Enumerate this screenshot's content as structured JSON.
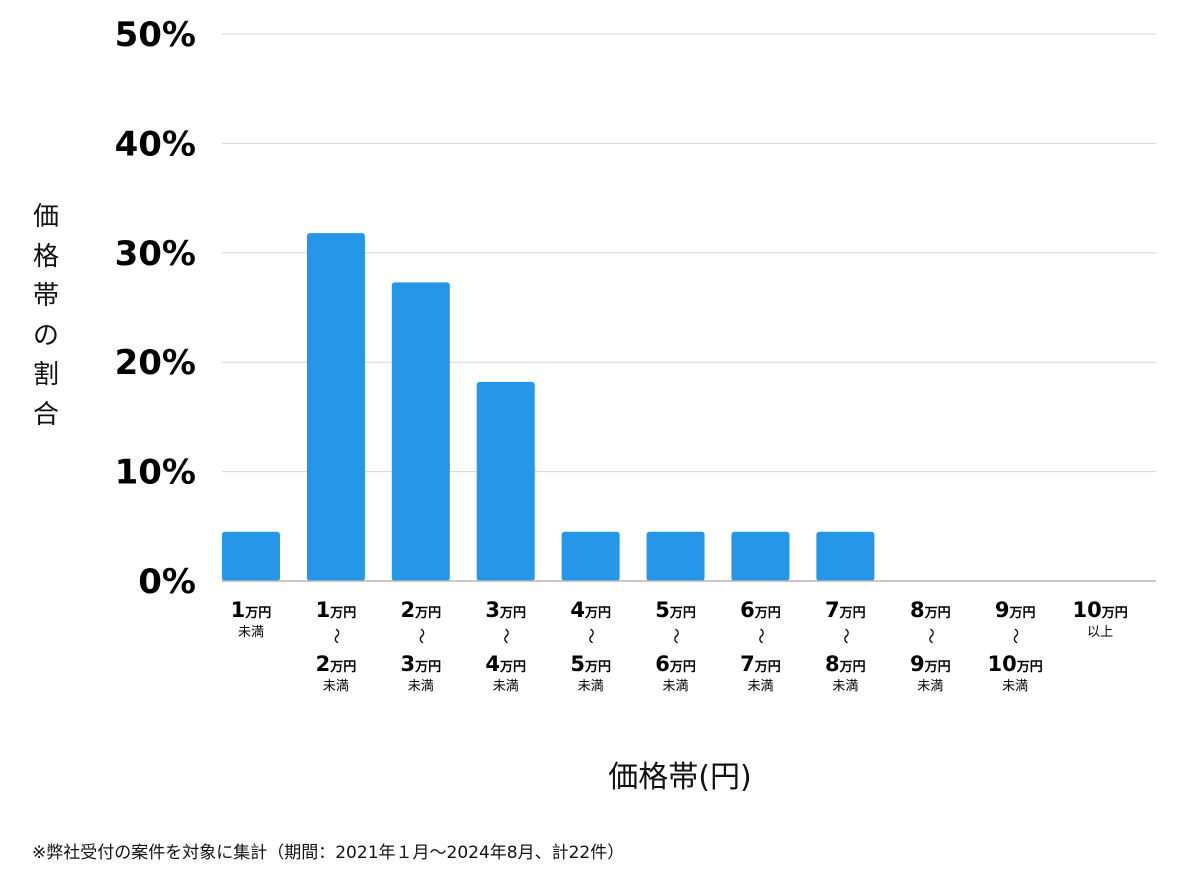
{
  "chart_data": {
    "type": "bar",
    "ylabel_chars": [
      "価",
      "格",
      "帯",
      "の",
      "割",
      "合"
    ],
    "xlabel": "価格帯(円)",
    "ylim": [
      0,
      50
    ],
    "y_ticks": [
      "0%",
      "10%",
      "20%",
      "30%",
      "40%",
      "50%"
    ],
    "grid": true,
    "categories": [
      {
        "from": "1",
        "from_unit": "万円",
        "to": "",
        "to_unit": "",
        "suffix": "未満"
      },
      {
        "from": "1",
        "from_unit": "万円",
        "to": "2",
        "to_unit": "万円",
        "suffix": "未満"
      },
      {
        "from": "2",
        "from_unit": "万円",
        "to": "3",
        "to_unit": "万円",
        "suffix": "未満"
      },
      {
        "from": "3",
        "from_unit": "万円",
        "to": "4",
        "to_unit": "万円",
        "suffix": "未満"
      },
      {
        "from": "4",
        "from_unit": "万円",
        "to": "5",
        "to_unit": "万円",
        "suffix": "未満"
      },
      {
        "from": "5",
        "from_unit": "万円",
        "to": "6",
        "to_unit": "万円",
        "suffix": "未満"
      },
      {
        "from": "6",
        "from_unit": "万円",
        "to": "7",
        "to_unit": "万円",
        "suffix": "未満"
      },
      {
        "from": "7",
        "from_unit": "万円",
        "to": "8",
        "to_unit": "万円",
        "suffix": "未満"
      },
      {
        "from": "8",
        "from_unit": "万円",
        "to": "9",
        "to_unit": "万円",
        "suffix": "未満"
      },
      {
        "from": "9",
        "from_unit": "万円",
        "to": "10",
        "to_unit": "万円",
        "suffix": "未満"
      },
      {
        "from": "10",
        "from_unit": "万円",
        "to": "",
        "to_unit": "",
        "suffix": "以上"
      }
    ],
    "range_symbol": "〜",
    "values": [
      4.5,
      31.8,
      27.3,
      18.2,
      4.5,
      4.5,
      4.5,
      4.5,
      0,
      0,
      0
    ],
    "bar_color": "#2596e8"
  },
  "footnote": "※弊社受付の案件を対象に集計（期間：2021年１月〜2024年8月、計22件）"
}
